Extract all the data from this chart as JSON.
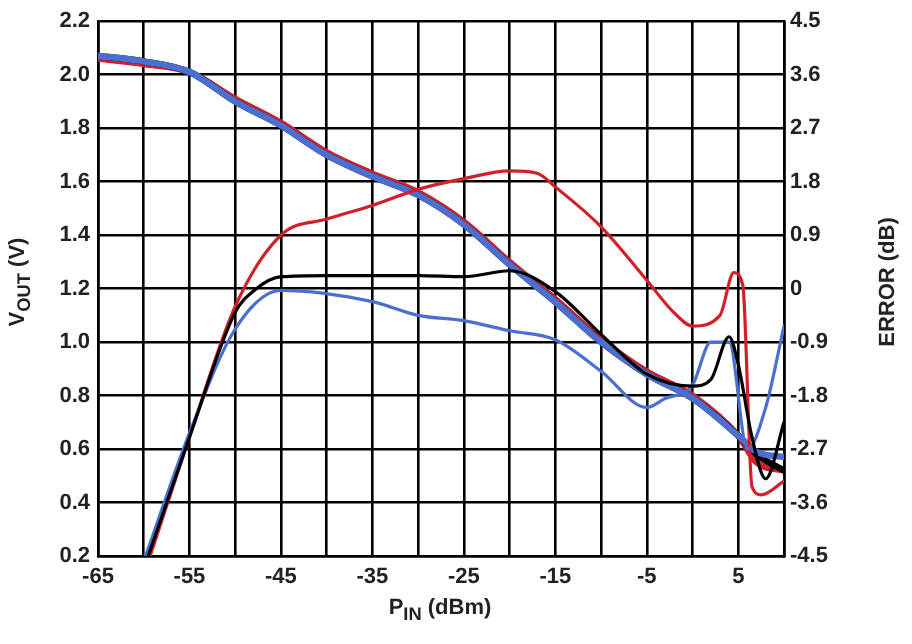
{
  "chart_data": {
    "type": "line",
    "xlabel": "P$_{IN}$ (dBm)",
    "ylabel": "V$_{OUT}$ (V)",
    "y2label": "ERROR (dB)",
    "xlim": [
      -65,
      10
    ],
    "xticks": [
      -65,
      {
        "value": -60,
        "label": null
      },
      -55,
      {
        "value": -50,
        "label": null
      },
      -45,
      {
        "value": -40,
        "label": null
      },
      -35,
      {
        "value": -30,
        "label": null
      },
      -25,
      {
        "value": -20,
        "label": null
      },
      -15,
      {
        "value": -10,
        "label": null
      },
      -5,
      {
        "value": 0,
        "label": null
      },
      5,
      {
        "value": 10,
        "label": null
      }
    ],
    "ylim": [
      0.2,
      2.2
    ],
    "yticks": [
      {
        "value": 0.2,
        "label": "0.2"
      },
      {
        "value": 0.4,
        "label": "0.4"
      },
      {
        "value": 0.6,
        "label": "0.6"
      },
      {
        "value": 0.8,
        "label": "0.8"
      },
      {
        "value": 1,
        "label": "1.0"
      },
      {
        "value": 1.2,
        "label": "1.2"
      },
      {
        "value": 1.4,
        "label": "1.4"
      },
      {
        "value": 1.6,
        "label": "1.6"
      },
      {
        "value": 1.8,
        "label": "1.8"
      },
      {
        "value": 2,
        "label": "2.0"
      },
      {
        "value": 2.2,
        "label": "2.2"
      }
    ],
    "y2lim": [
      -4.5,
      4.5
    ],
    "y2ticks": [
      -4.5,
      -3.6,
      -2.7,
      -1.8,
      -0.9,
      0,
      0.9,
      1.8,
      2.7,
      3.6,
      4.5
    ],
    "grid": true,
    "legend": false,
    "marker": "none",
    "line_style": "solid",
    "series": [
      {
        "color": "#4a6fd0",
        "x": [
          -65,
          -60,
          -55,
          -50,
          -45,
          -40,
          -35,
          -30,
          -25,
          -20,
          -15,
          -10,
          -5,
          0,
          5,
          7,
          10
        ],
        "values": [
          2.07,
          2.05,
          2.01,
          1.9,
          1.81,
          1.7,
          1.62,
          1.55,
          1.44,
          1.29,
          1.15,
          1.0,
          0.88,
          0.79,
          0.65,
          0.59,
          0.57
        ]
      },
      {
        "color": "#000000",
        "x": [
          -65,
          -60,
          -55,
          -50,
          -45,
          -40,
          -35,
          -30,
          -25,
          -20,
          -15,
          -10,
          -5,
          0,
          5,
          7,
          10
        ],
        "values": [
          2.07,
          2.05,
          2.01,
          1.9,
          1.81,
          1.7,
          1.62,
          1.55,
          1.44,
          1.29,
          1.15,
          1.0,
          0.88,
          0.79,
          0.65,
          0.58,
          0.52
        ]
      },
      {
        "color": "#d0202a",
        "x": [
          -65,
          -60,
          -55,
          -50,
          -45,
          -40,
          -35,
          -30,
          -25,
          -20,
          -15,
          -10,
          -5,
          0,
          5,
          7,
          10
        ],
        "values": [
          2.06,
          2.04,
          2.01,
          1.91,
          1.82,
          1.71,
          1.63,
          1.56,
          1.45,
          1.3,
          1.16,
          1.01,
          0.89,
          0.8,
          0.65,
          0.55,
          0.52
        ]
      },
      {
        "color": "#000000",
        "axis": "y2",
        "x": [
          -59.5,
          -55,
          -50,
          -48,
          -45,
          -40,
          -30,
          -25,
          -20,
          -15,
          -10,
          -5,
          0,
          2,
          4,
          5,
          6.5,
          8,
          10
        ],
        "values": [
          -4.5,
          -2.5,
          -0.4,
          -0.04,
          0.2,
          0.22,
          0.22,
          0.2,
          0.3,
          -0.05,
          -0.77,
          -1.44,
          -1.64,
          -1.53,
          -0.81,
          -1.28,
          -2.5,
          -3.2,
          -2.25
        ]
      },
      {
        "color": "#4a6fd0",
        "axis": "y2",
        "x": [
          -59.8,
          -55,
          -50,
          -45,
          -35,
          -30,
          -25,
          -20,
          -15,
          -10,
          -5,
          -3,
          0,
          2,
          4,
          6,
          8,
          10
        ],
        "values": [
          -4.5,
          -2.43,
          -0.68,
          -0.03,
          -0.22,
          -0.45,
          -0.54,
          -0.71,
          -0.86,
          -1.39,
          -2.0,
          -1.85,
          -1.62,
          -0.9,
          -0.9,
          -2.7,
          -2.0,
          -0.63
        ]
      },
      {
        "color": "#d0202a",
        "axis": "y2",
        "x": [
          -59.3,
          -55,
          -50,
          -45,
          -40,
          -35,
          -30,
          -25,
          -20,
          -17,
          -15,
          -10,
          -5,
          -2,
          0,
          3,
          4.5,
          5.5,
          6.5,
          7.5,
          10
        ],
        "values": [
          -4.5,
          -2.5,
          -0.3,
          0.9,
          1.17,
          1.4,
          1.67,
          1.85,
          1.98,
          1.94,
          1.71,
          1.04,
          0.14,
          -0.41,
          -0.63,
          -0.45,
          0.27,
          0.05,
          -3.33,
          -3.47,
          -3.24
        ]
      }
    ]
  }
}
